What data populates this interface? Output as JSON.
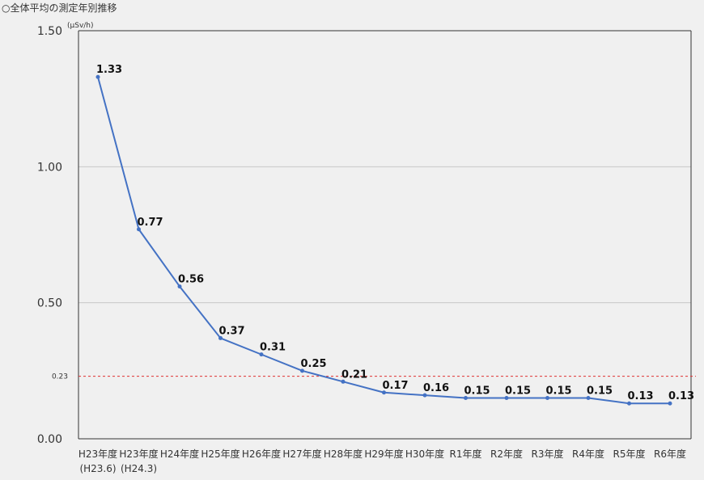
{
  "chart_data": {
    "type": "line",
    "title": "○全体平均の測定年別推移",
    "unit": "(μSv/h)",
    "ylim": [
      0,
      1.5
    ],
    "yticks": [
      {
        "value": 0,
        "label": "0.00"
      },
      {
        "value": 0.5,
        "label": "0.50"
      },
      {
        "value": 1.0,
        "label": "1.00"
      },
      {
        "value": 1.5,
        "label": "1.50"
      }
    ],
    "grid": true,
    "categories": [
      {
        "label": "H23年度",
        "sub": "(H23.6)"
      },
      {
        "label": "H23年度",
        "sub": "(H24.3)"
      },
      {
        "label": "H24年度",
        "sub": ""
      },
      {
        "label": "H25年度",
        "sub": ""
      },
      {
        "label": "H26年度",
        "sub": ""
      },
      {
        "label": "H27年度",
        "sub": ""
      },
      {
        "label": "H28年度",
        "sub": ""
      },
      {
        "label": "H29年度",
        "sub": ""
      },
      {
        "label": "H30年度",
        "sub": ""
      },
      {
        "label": "R1年度",
        "sub": ""
      },
      {
        "label": "R2年度",
        "sub": ""
      },
      {
        "label": "R3年度",
        "sub": ""
      },
      {
        "label": "R4年度",
        "sub": ""
      },
      {
        "label": "R5年度",
        "sub": ""
      },
      {
        "label": "R6年度",
        "sub": ""
      }
    ],
    "series": [
      {
        "name": "全体平均",
        "values": [
          1.33,
          0.77,
          0.56,
          0.37,
          0.31,
          0.25,
          0.21,
          0.17,
          0.16,
          0.15,
          0.15,
          0.15,
          0.15,
          0.13,
          0.13
        ],
        "labels": [
          "1.33",
          "0.77",
          "0.56",
          "0.37",
          "0.31",
          "0.25",
          "0.21",
          "0.17",
          "0.16",
          "0.15",
          "0.15",
          "0.15",
          "0.15",
          "0.13",
          "0.13"
        ]
      }
    ],
    "reference_line": {
      "value": 0.23,
      "label": "0.23"
    },
    "colors": {
      "line": "#4472c4",
      "reference": "#e03030",
      "grid": "#c8c8c8",
      "axis": "#333333"
    }
  }
}
